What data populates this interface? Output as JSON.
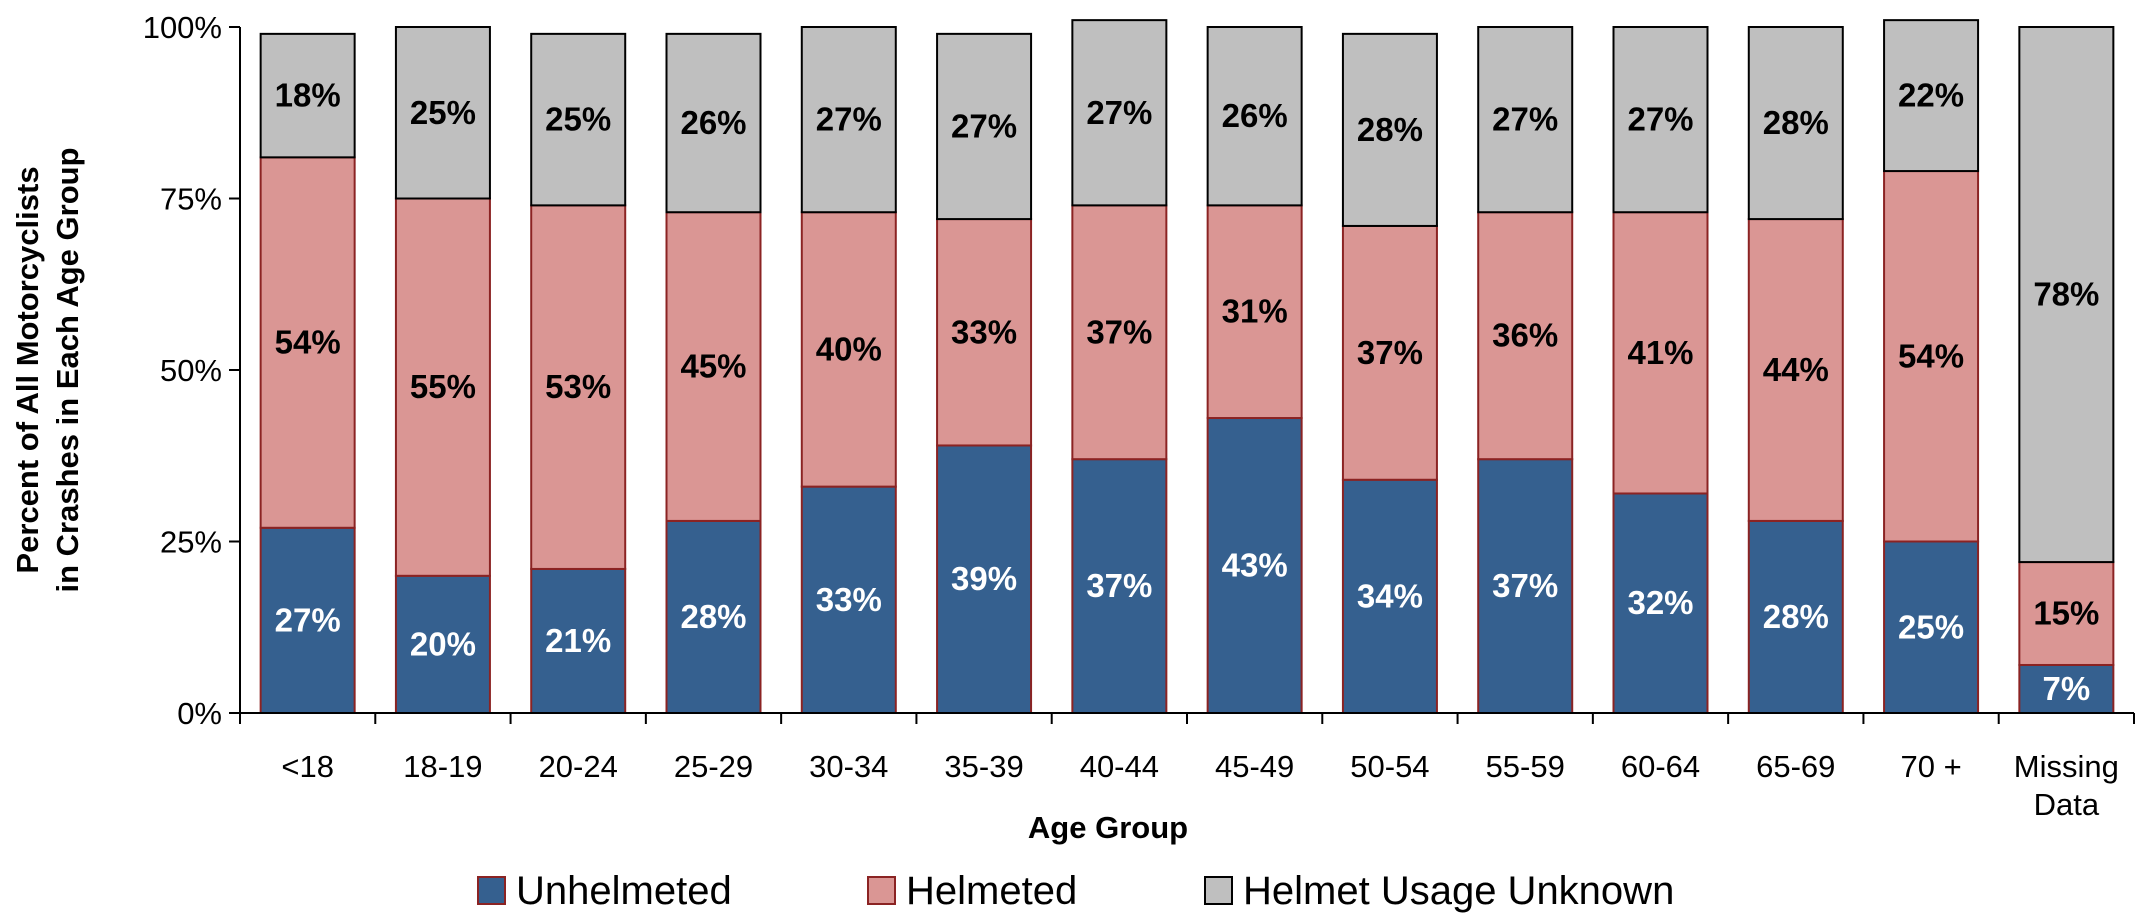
{
  "chart_data": {
    "type": "bar",
    "stacked": true,
    "percent_stacked": true,
    "title": "",
    "xlabel": "Age Group",
    "ylabel_lines": [
      "Percent of All Motorcyclists",
      "in Crashes in Each Age Group"
    ],
    "ylim": [
      0,
      100
    ],
    "yticks": [
      "0%",
      "25%",
      "50%",
      "75%",
      "100%"
    ],
    "ytick_values": [
      0,
      25,
      50,
      75,
      100
    ],
    "grid": false,
    "legend_position": "bottom-center",
    "categories": [
      [
        "<18"
      ],
      [
        "18-19"
      ],
      [
        "20-24"
      ],
      [
        "25-29"
      ],
      [
        "30-34"
      ],
      [
        "35-39"
      ],
      [
        "40-44"
      ],
      [
        "45-49"
      ],
      [
        "50-54"
      ],
      [
        "55-59"
      ],
      [
        "60-64"
      ],
      [
        "65-69"
      ],
      [
        "70 +"
      ],
      [
        "Missing",
        "Data"
      ]
    ],
    "series": [
      {
        "name": "Unhelmeted",
        "color": "#35608f",
        "label_color": "#ffffff",
        "values": [
          27,
          20,
          21,
          28,
          33,
          39,
          37,
          43,
          34,
          37,
          32,
          28,
          25,
          7
        ],
        "labels": [
          "27%",
          "20%",
          "21%",
          "28%",
          "33%",
          "39%",
          "37%",
          "43%",
          "34%",
          "37%",
          "32%",
          "28%",
          "25%",
          "7%"
        ]
      },
      {
        "name": "Helmeted",
        "color": "#da9694",
        "label_color": "#000000",
        "values": [
          54,
          55,
          53,
          45,
          40,
          33,
          37,
          31,
          37,
          36,
          41,
          44,
          54,
          15
        ],
        "labels": [
          "54%",
          "55%",
          "53%",
          "45%",
          "40%",
          "33%",
          "37%",
          "31%",
          "37%",
          "36%",
          "41%",
          "44%",
          "54%",
          "15%"
        ]
      },
      {
        "name": "Helmet Usage Unknown",
        "color": "#bfbfbf",
        "label_color": "#000000",
        "values": [
          18,
          25,
          25,
          26,
          27,
          27,
          27,
          26,
          28,
          27,
          27,
          28,
          22,
          78
        ],
        "labels": [
          "18%",
          "25%",
          "25%",
          "26%",
          "27%",
          "27%",
          "27%",
          "26%",
          "28%",
          "27%",
          "27%",
          "28%",
          "22%",
          "78%"
        ]
      }
    ]
  }
}
